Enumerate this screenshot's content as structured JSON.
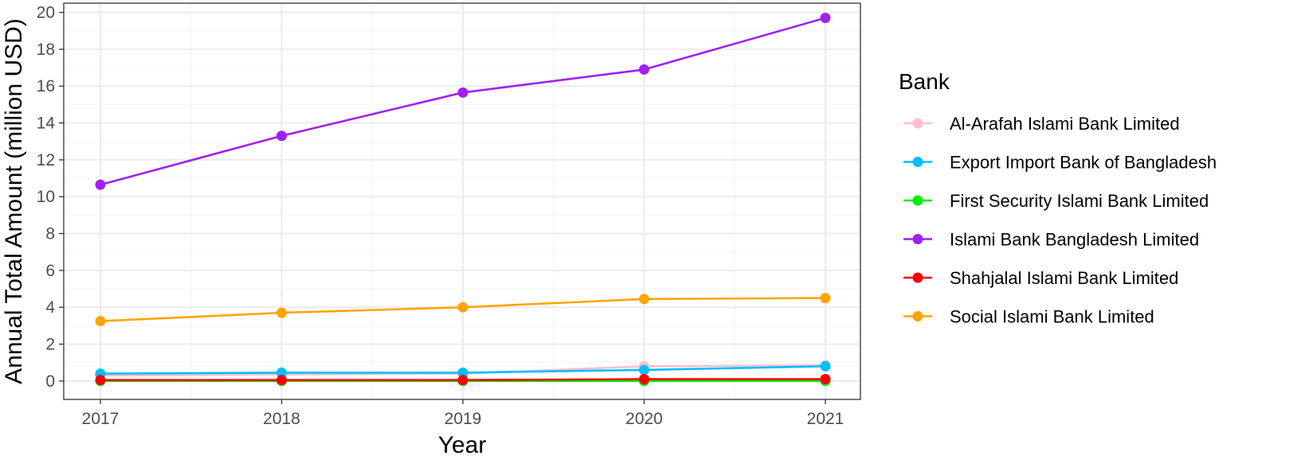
{
  "chart_data": {
    "type": "line",
    "title": "",
    "xlabel": "Year",
    "ylabel": "Annual Total Amount (million USD)",
    "x": [
      "2017",
      "2018",
      "2019",
      "2020",
      "2021"
    ],
    "ylim": [
      -1,
      20.5
    ],
    "yticks": [
      "0",
      "2",
      "4",
      "6",
      "8",
      "10",
      "12",
      "14",
      "16",
      "18",
      "20"
    ],
    "grid": true,
    "legend_title": "Bank",
    "legend_position": "right",
    "series": [
      {
        "name": "Al-Arafah Islami Bank Limited",
        "color": "#FFC0CB",
        "values": [
          0.3,
          0.35,
          0.4,
          0.8,
          0.85
        ]
      },
      {
        "name": "Export Import Bank of Bangladesh",
        "color": "#00BFFF",
        "values": [
          0.4,
          0.45,
          0.45,
          0.6,
          0.8
        ]
      },
      {
        "name": "First Security Islami Bank Limited",
        "color": "#00EE00",
        "values": [
          0.0,
          0.0,
          0.0,
          0.0,
          0.0
        ]
      },
      {
        "name": "Islami Bank Bangladesh Limited",
        "color": "#A020F0",
        "values": [
          10.65,
          13.3,
          15.65,
          16.9,
          19.7
        ]
      },
      {
        "name": "Shahjalal Islami Bank Limited",
        "color": "#FF0000",
        "values": [
          0.05,
          0.05,
          0.05,
          0.1,
          0.1
        ]
      },
      {
        "name": "Social Islami Bank Limited",
        "color": "#FFA500",
        "values": [
          3.25,
          3.7,
          4.0,
          4.45,
          4.5
        ]
      }
    ]
  }
}
